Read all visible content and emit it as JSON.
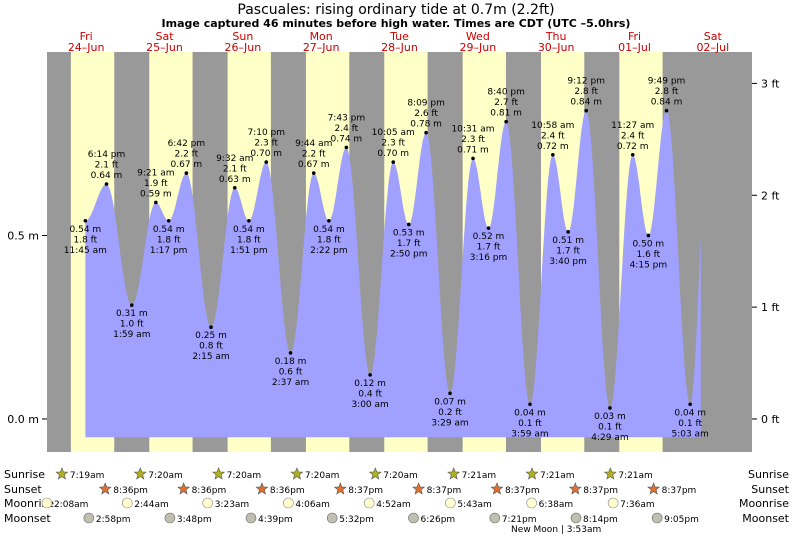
{
  "header": {
    "title": "Pascuales: rising  ordinary tide at 0.7m (2.2ft)",
    "subtitle": "Image captured 46 minutes before high water. Times are CDT (UTC –5.0hrs)"
  },
  "colors": {
    "night": "#999999",
    "day": "#ffffc8",
    "tide": "#a0a0ff",
    "day_label": "#cc0000",
    "sunset_star": "#e07030",
    "sunrise_star": "#b0b020",
    "moon": "#ffffd0",
    "moonset": "#c0c0b0"
  },
  "days": [
    {
      "dow": "Fri",
      "date": "24–Jun"
    },
    {
      "dow": "Sat",
      "date": "25–Jun"
    },
    {
      "dow": "Sun",
      "date": "26–Jun"
    },
    {
      "dow": "Mon",
      "date": "27–Jun"
    },
    {
      "dow": "Tue",
      "date": "28–Jun"
    },
    {
      "dow": "Wed",
      "date": "29–Jun"
    },
    {
      "dow": "Thu",
      "date": "30–Jun"
    },
    {
      "dow": "Fri",
      "date": "01–Jul"
    },
    {
      "dow": "Sat",
      "date": "02–Jul"
    }
  ],
  "chart_data": {
    "type": "area",
    "title": "Pascuales: rising  ordinary tide at 0.7m (2.2ft)",
    "y_left_ticks": [
      "0.0 m",
      "0.5 m"
    ],
    "y_right_ticks": [
      "0 ft",
      "1 ft",
      "2 ft",
      "3 ft"
    ],
    "ylim_m": [
      -0.09,
      1.0
    ],
    "xlim_hours": [
      0,
      216
    ],
    "tide_events": [
      {
        "t": "6:14 pm",
        "day": 0,
        "hour": 18.23,
        "m": 0.64,
        "ft": "2.1 ft",
        "m_label": "0.64 m",
        "kind": "high"
      },
      {
        "t": "1:59 am",
        "day": 1,
        "hour": 25.98,
        "m": 0.31,
        "ft": "1.0 ft",
        "m_label": "0.31 m",
        "kind": "low"
      },
      {
        "t": "9:21 am",
        "day": 1,
        "hour": 33.35,
        "m": 0.59,
        "ft": "1.9 ft",
        "m_label": "0.59 m",
        "kind": "high"
      },
      {
        "t": "1:17 pm",
        "day": 1,
        "hour": 37.28,
        "m": 0.54,
        "ft": "1.8 ft",
        "m_label": "0.54 m",
        "kind": "low"
      },
      {
        "t": "6:42 pm",
        "day": 1,
        "hour": 42.7,
        "m": 0.67,
        "ft": "2.2 ft",
        "m_label": "0.67 m",
        "kind": "high"
      },
      {
        "t": "2:15 am",
        "day": 2,
        "hour": 50.25,
        "m": 0.25,
        "ft": "0.8 ft",
        "m_label": "0.25 m",
        "kind": "low"
      },
      {
        "t": "9:32 am",
        "day": 2,
        "hour": 57.53,
        "m": 0.63,
        "ft": "2.1 ft",
        "m_label": "0.63 m",
        "kind": "high"
      },
      {
        "t": "1:51 pm",
        "day": 2,
        "hour": 61.85,
        "m": 0.54,
        "ft": "1.8 ft",
        "m_label": "0.54 m",
        "kind": "low"
      },
      {
        "t": "7:10 pm",
        "day": 2,
        "hour": 67.17,
        "m": 0.7,
        "ft": "2.3 ft",
        "m_label": "0.70 m",
        "kind": "high"
      },
      {
        "t": "2:37 am",
        "day": 3,
        "hour": 74.62,
        "m": 0.18,
        "ft": "0.6 ft",
        "m_label": "0.18 m",
        "kind": "low"
      },
      {
        "t": "9:44 am",
        "day": 3,
        "hour": 81.73,
        "m": 0.67,
        "ft": "2.2 ft",
        "m_label": "0.67 m",
        "kind": "high"
      },
      {
        "t": "2:22 pm",
        "day": 3,
        "hour": 86.37,
        "m": 0.54,
        "ft": "1.8 ft",
        "m_label": "0.54 m",
        "kind": "low"
      },
      {
        "t": "7:43 pm",
        "day": 3,
        "hour": 91.72,
        "m": 0.74,
        "ft": "2.4 ft",
        "m_label": "0.74 m",
        "kind": "high"
      },
      {
        "t": "3:00 am",
        "day": 4,
        "hour": 99.0,
        "m": 0.12,
        "ft": "0.4 ft",
        "m_label": "0.12 m",
        "kind": "low"
      },
      {
        "t": "10:05 am",
        "day": 4,
        "hour": 106.08,
        "m": 0.7,
        "ft": "2.3 ft",
        "m_label": "0.70 m",
        "kind": "high"
      },
      {
        "t": "2:50 pm",
        "day": 4,
        "hour": 110.83,
        "m": 0.53,
        "ft": "1.7 ft",
        "m_label": "0.53 m",
        "kind": "low"
      },
      {
        "t": "8:09 pm",
        "day": 4,
        "hour": 116.15,
        "m": 0.78,
        "ft": "2.6 ft",
        "m_label": "0.78 m",
        "kind": "high"
      },
      {
        "t": "3:29 am",
        "day": 5,
        "hour": 123.48,
        "m": 0.07,
        "ft": "0.2 ft",
        "m_label": "0.07 m",
        "kind": "low"
      },
      {
        "t": "10:31 am",
        "day": 5,
        "hour": 130.52,
        "m": 0.71,
        "ft": "2.3 ft",
        "m_label": "0.71 m",
        "kind": "high"
      },
      {
        "t": "3:16 pm",
        "day": 5,
        "hour": 135.27,
        "m": 0.52,
        "ft": "1.7 ft",
        "m_label": "0.52 m",
        "kind": "low"
      },
      {
        "t": "8:40 pm",
        "day": 5,
        "hour": 140.67,
        "m": 0.81,
        "ft": "2.7 ft",
        "m_label": "0.81 m",
        "kind": "high"
      },
      {
        "t": "3:59 am",
        "day": 6,
        "hour": 147.98,
        "m": 0.04,
        "ft": "0.1 ft",
        "m_label": "0.04 m",
        "kind": "low"
      },
      {
        "t": "10:58 am",
        "day": 6,
        "hour": 154.97,
        "m": 0.72,
        "ft": "2.4 ft",
        "m_label": "0.72 m",
        "kind": "high"
      },
      {
        "t": "3:40 pm",
        "day": 6,
        "hour": 159.67,
        "m": 0.51,
        "ft": "1.7 ft",
        "m_label": "0.51 m",
        "kind": "low"
      },
      {
        "t": "9:12 pm",
        "day": 6,
        "hour": 165.2,
        "m": 0.84,
        "ft": "2.8 ft",
        "m_label": "0.84 m",
        "kind": "high"
      },
      {
        "t": "4:29 am",
        "day": 7,
        "hour": 172.48,
        "m": 0.03,
        "ft": "0.1 ft",
        "m_label": "0.03 m",
        "kind": "low"
      },
      {
        "t": "11:27 am",
        "day": 7,
        "hour": 179.45,
        "m": 0.72,
        "ft": "2.4 ft",
        "m_label": "0.72 m",
        "kind": "high"
      },
      {
        "t": "4:15 pm",
        "day": 7,
        "hour": 184.25,
        "m": 0.5,
        "ft": "1.6 ft",
        "m_label": "0.50 m",
        "kind": "low"
      },
      {
        "t": "9:49 pm",
        "day": 7,
        "hour": 189.82,
        "m": 0.84,
        "ft": "2.8 ft",
        "m_label": "0.84 m",
        "kind": "high"
      },
      {
        "t": "5:03 am",
        "day": 8,
        "hour": 197.05,
        "m": 0.04,
        "ft": "0.1 ft",
        "m_label": "0.04 m",
        "kind": "low"
      }
    ],
    "start_event": {
      "t": "11:45 am",
      "hour": 11.75,
      "m": 0.54,
      "ft": "1.8 ft",
      "m_label": "0.54 m"
    },
    "end_level_m": 0.5,
    "sunrise": [
      "7:19am",
      "7:20am",
      "7:20am",
      "7:20am",
      "7:20am",
      "7:21am",
      "7:21am",
      "7:21am"
    ],
    "sunset": [
      "8:36pm",
      "8:36pm",
      "8:36pm",
      "8:37pm",
      "8:37pm",
      "8:37pm",
      "8:37pm",
      "8:37pm"
    ],
    "moonrise": [
      "2:08am",
      "2:44am",
      "3:23am",
      "4:06am",
      "4:52am",
      "5:43am",
      "6:38am",
      "7:36am"
    ],
    "moonset": [
      "2:58pm",
      "3:48pm",
      "4:39pm",
      "5:32pm",
      "6:26pm",
      "7:21pm",
      "8:14pm",
      "9:05pm"
    ],
    "note": "New Moon | 3:53am"
  },
  "rows": {
    "sunrise": "Sunrise",
    "sunset": "Sunset",
    "moonrise": "Moonrise",
    "moonset": "Moonset"
  }
}
